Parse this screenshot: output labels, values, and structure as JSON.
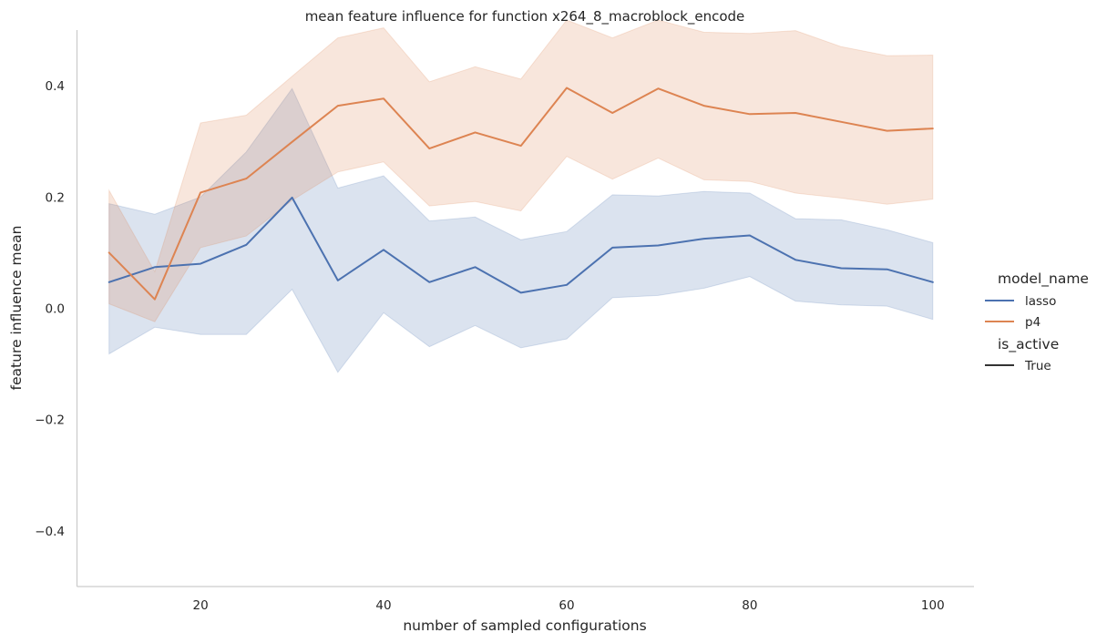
{
  "chart_data": {
    "type": "line",
    "title": "mean feature influence for function x264_8_macroblock_encode",
    "xlabel": "number of sampled configurations",
    "ylabel": "feature influence mean",
    "xlim": [
      6.5,
      104.5
    ],
    "ylim": [
      -0.5,
      0.5
    ],
    "xticks": [
      20,
      40,
      60,
      80,
      100
    ],
    "yticks": [
      -0.4,
      -0.2,
      0.0,
      0.2,
      0.4
    ],
    "xtick_labels": [
      "20",
      "40",
      "60",
      "80",
      "100"
    ],
    "ytick_labels": [
      "−0.4",
      "−0.2",
      "0.0",
      "0.2",
      "0.4"
    ],
    "grid": false,
    "legend_position": "right",
    "x": [
      10,
      15,
      20,
      25,
      30,
      35,
      40,
      45,
      50,
      55,
      60,
      65,
      70,
      75,
      80,
      85,
      90,
      95,
      100
    ],
    "series": [
      {
        "name": "lasso",
        "color": "#4c72b0",
        "values": [
          0.047,
          0.074,
          0.08,
          0.114,
          0.199,
          0.05,
          0.105,
          0.047,
          0.074,
          0.028,
          0.042,
          0.109,
          0.113,
          0.125,
          0.131,
          0.087,
          0.072,
          0.07,
          0.047
        ],
        "ci_lower": [
          -0.082,
          -0.034,
          -0.047,
          -0.047,
          0.034,
          -0.115,
          -0.008,
          -0.069,
          -0.031,
          -0.071,
          -0.055,
          0.019,
          0.023,
          0.036,
          0.057,
          0.013,
          0.006,
          0.004,
          -0.02
        ],
        "ci_upper": [
          0.188,
          0.169,
          0.2,
          0.281,
          0.395,
          0.216,
          0.238,
          0.157,
          0.164,
          0.123,
          0.138,
          0.204,
          0.202,
          0.21,
          0.207,
          0.161,
          0.159,
          0.141,
          0.118
        ]
      },
      {
        "name": "p4",
        "color": "#dd8452",
        "values": [
          0.1,
          0.016,
          0.208,
          0.233,
          0.299,
          0.364,
          0.377,
          0.287,
          0.316,
          0.292,
          0.396,
          0.351,
          0.395,
          0.364,
          0.349,
          0.351,
          0.335,
          0.319,
          0.323
        ],
        "ci_lower": [
          0.008,
          -0.024,
          0.109,
          0.13,
          0.194,
          0.245,
          0.263,
          0.184,
          0.192,
          0.175,
          0.273,
          0.232,
          0.27,
          0.231,
          0.228,
          0.207,
          0.198,
          0.187,
          0.196
        ],
        "ci_upper": [
          0.212,
          0.066,
          0.333,
          0.347,
          0.417,
          0.486,
          0.504,
          0.407,
          0.434,
          0.412,
          0.518,
          0.486,
          0.518,
          0.496,
          0.494,
          0.499,
          0.47,
          0.454,
          0.455
        ]
      }
    ],
    "legend": {
      "hue_title": "model_name",
      "style_title": "is_active",
      "style_entries": [
        {
          "label": "True",
          "color": "#333333"
        }
      ]
    }
  }
}
